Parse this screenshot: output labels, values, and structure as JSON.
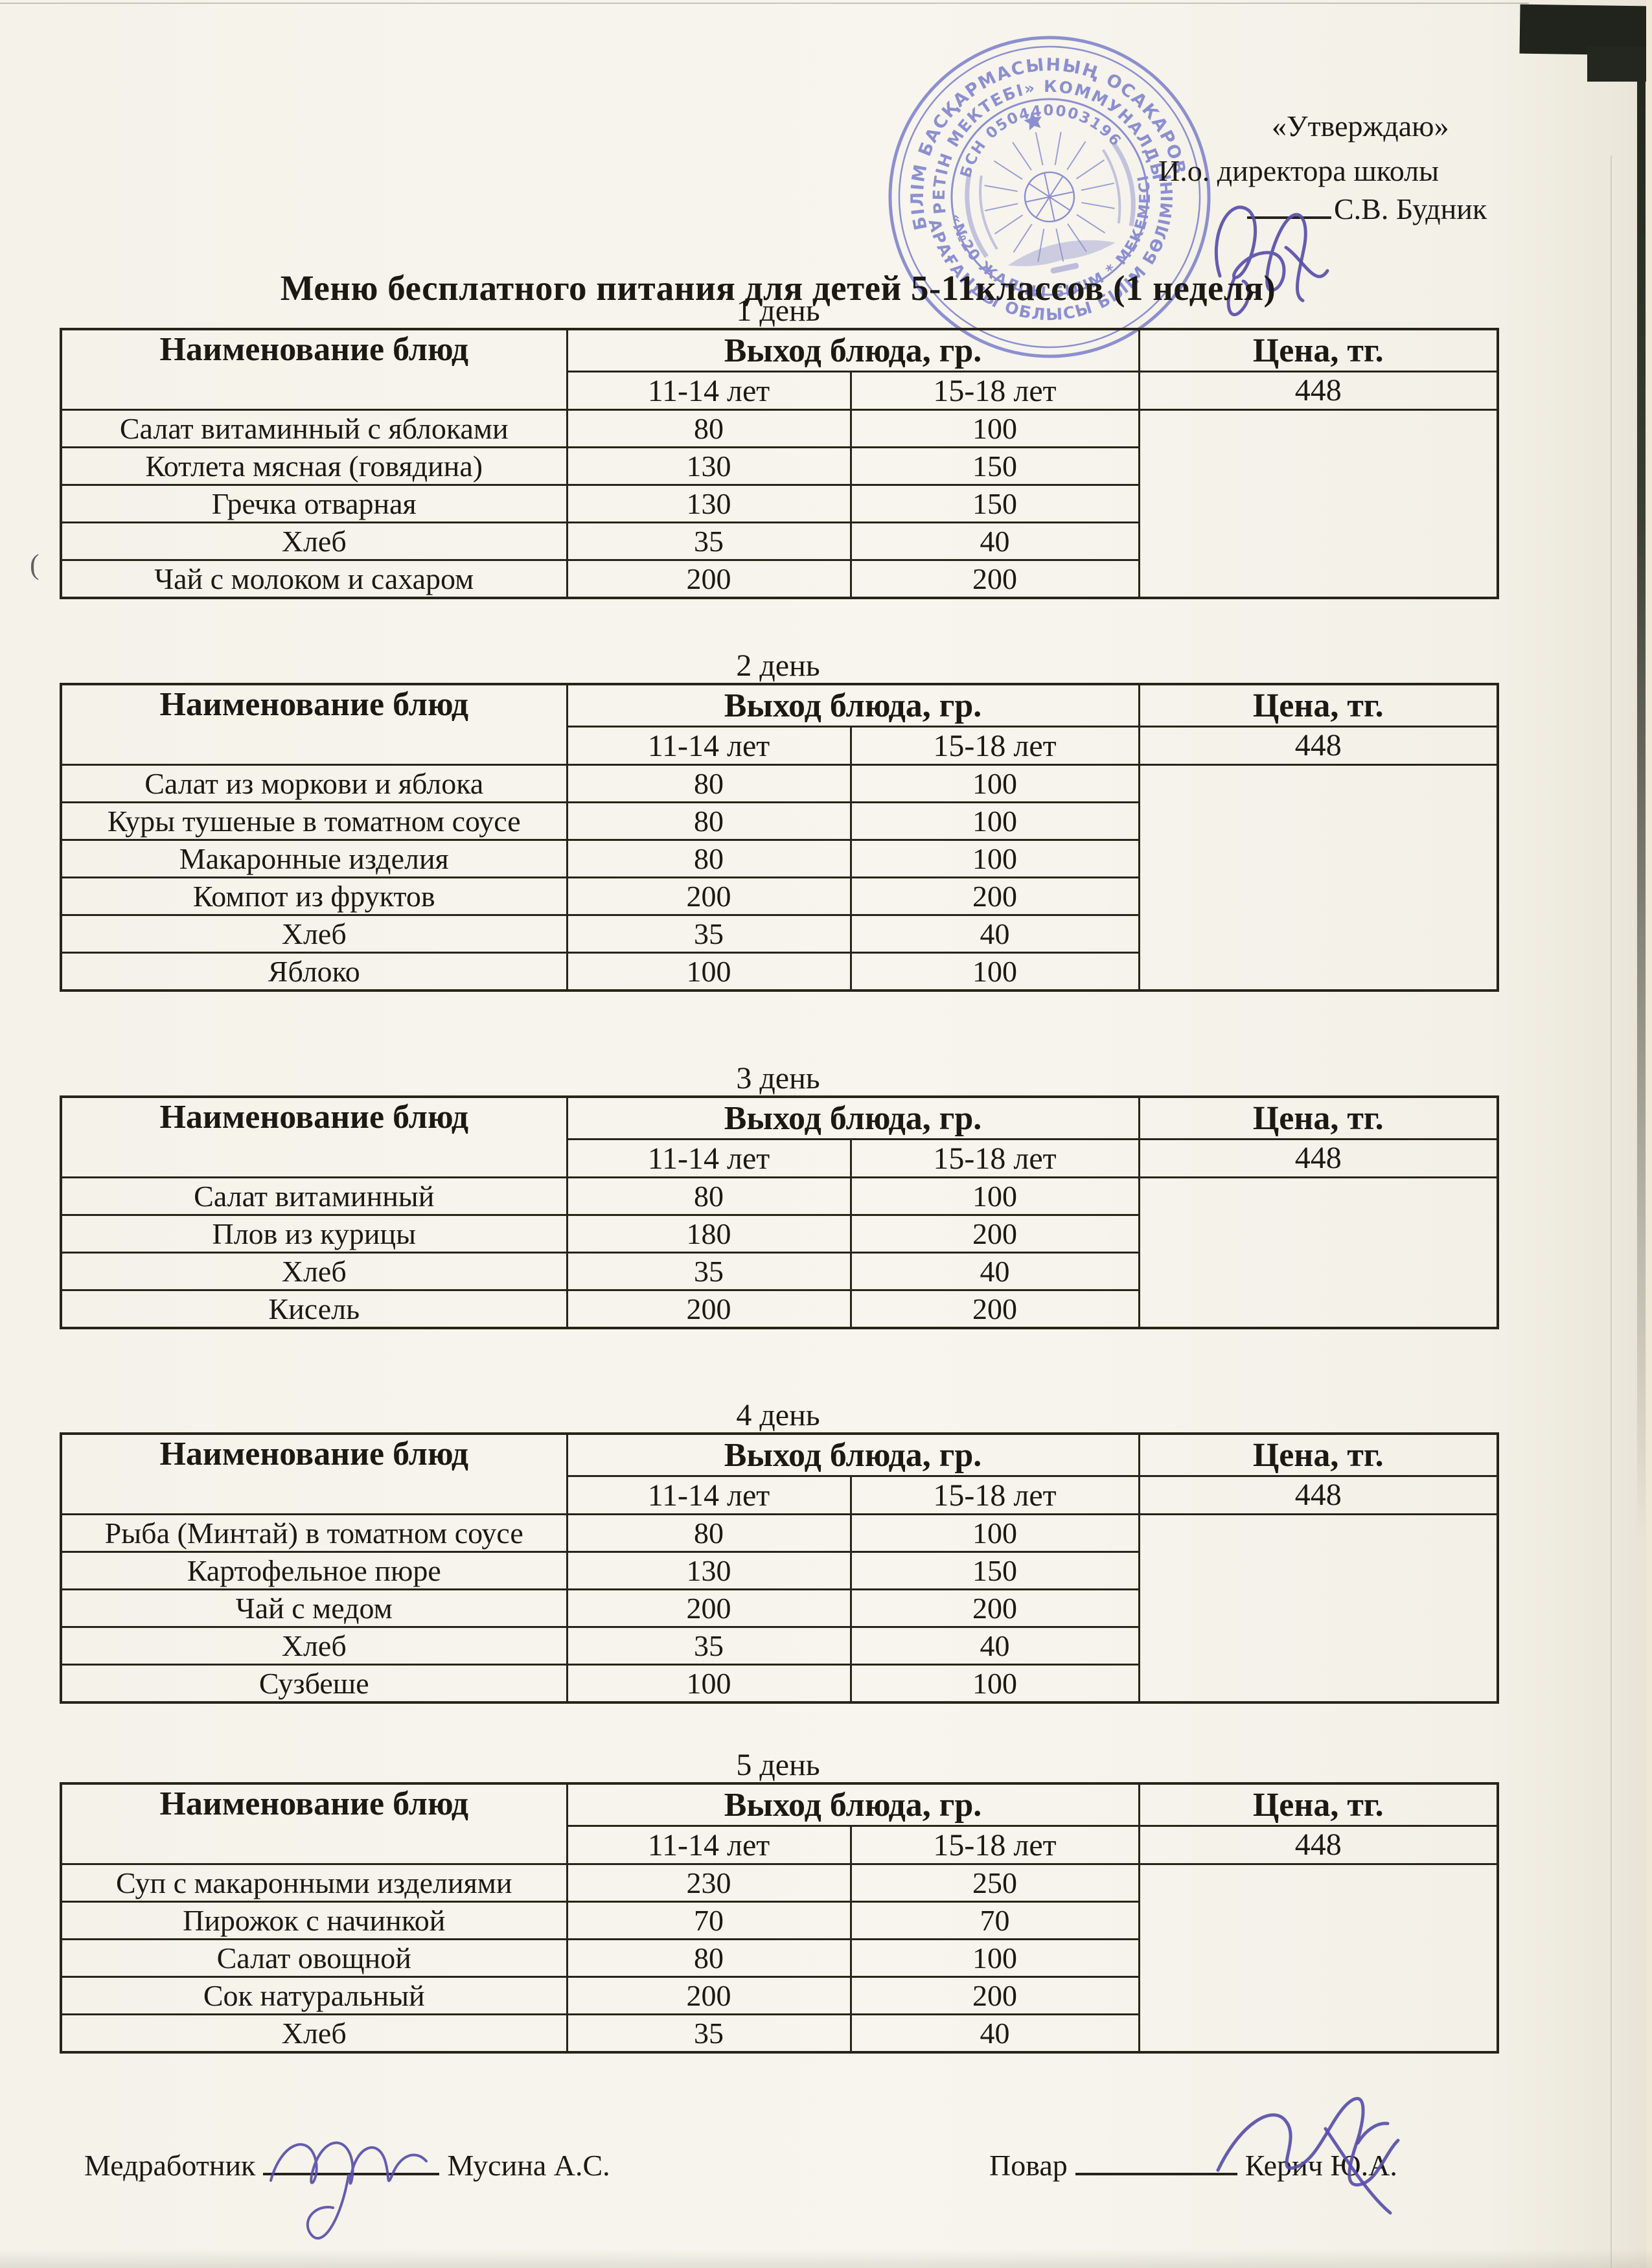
{
  "approval": {
    "line1": "«Утверждаю»",
    "line2": "И.о. директора школы",
    "name": "С.В. Будник"
  },
  "title": "Меню бесплатного питания для детей 5-11классов (1 неделя)",
  "table_headers": {
    "name": "Наименование блюд",
    "output": "Выход блюда, гр.",
    "price": "Цена, тг.",
    "age1": "11-14 лет",
    "age2": "15-18 лет"
  },
  "days": [
    {
      "label": "1 день",
      "price": "448",
      "rows": [
        [
          "Салат витаминный с яблоками",
          "80",
          "100"
        ],
        [
          "Котлета мясная (говядина)",
          "130",
          "150"
        ],
        [
          "Гречка отварная",
          "130",
          "150"
        ],
        [
          "Хлеб",
          "35",
          "40"
        ],
        [
          "Чай с молоком и сахаром",
          "200",
          "200"
        ]
      ]
    },
    {
      "label": "2 день",
      "price": "448",
      "rows": [
        [
          "Салат из моркови и яблока",
          "80",
          "100"
        ],
        [
          "Куры тушеные в томатном соусе",
          "80",
          "100"
        ],
        [
          "Макаронные изделия",
          "80",
          "100"
        ],
        [
          "Компот из фруктов",
          "200",
          "200"
        ],
        [
          "Хлеб",
          "35",
          "40"
        ],
        [
          "Яблоко",
          "100",
          "100"
        ]
      ]
    },
    {
      "label": "3 день",
      "price": "448",
      "rows": [
        [
          "Салат витаминный",
          "80",
          "100"
        ],
        [
          "Плов из курицы",
          "180",
          "200"
        ],
        [
          "Хлеб",
          "35",
          "40"
        ],
        [
          "Кисель",
          "200",
          "200"
        ]
      ]
    },
    {
      "label": "4 день",
      "price": "448",
      "rows": [
        [
          "Рыба (Минтай) в томатном соусе",
          "80",
          "100"
        ],
        [
          "Картофельное пюре",
          "130",
          "150"
        ],
        [
          "Чай с медом",
          "200",
          "200"
        ],
        [
          "Хлеб",
          "35",
          "40"
        ],
        [
          "Сузбеше",
          "100",
          "100"
        ]
      ]
    },
    {
      "label": "5 день",
      "price": "448",
      "rows": [
        [
          "Суп с макаронными изделиями",
          "230",
          "250"
        ],
        [
          "Пирожок с начинкой",
          "70",
          "70"
        ],
        [
          "Салат овощной",
          "80",
          "100"
        ],
        [
          "Сок натуральный",
          "200",
          "200"
        ],
        [
          "Хлеб",
          "35",
          "40"
        ]
      ]
    }
  ],
  "footer": {
    "med_label": "Медработник",
    "med_name": "Мусина А.С.",
    "cook_label": "Повар",
    "cook_name": "Керич Ю.А."
  },
  "stamp": {
    "arc_top": "БІЛІМ БАСҚАРМАСЫНЫҢ ОСАКАРОВ",
    "arc_mid": "БЕРЕТІН МЕКТЕБІ» КОММУНАЛДЫҚ",
    "arc_bsn": "БСН 050440003196",
    "arc_bottom_outer": "ҚАРАҒАНДЫ ОБЛЫСЫ БІЛІМ БӨЛІМІНІҢ",
    "arc_bottom_inner": "«№20 ЖАЛПЫ БІЛІМ * МЕКЕМЕСІ",
    "color": "#7277c8"
  },
  "ink_color": "#584fa9",
  "left_edge_mark": "("
}
